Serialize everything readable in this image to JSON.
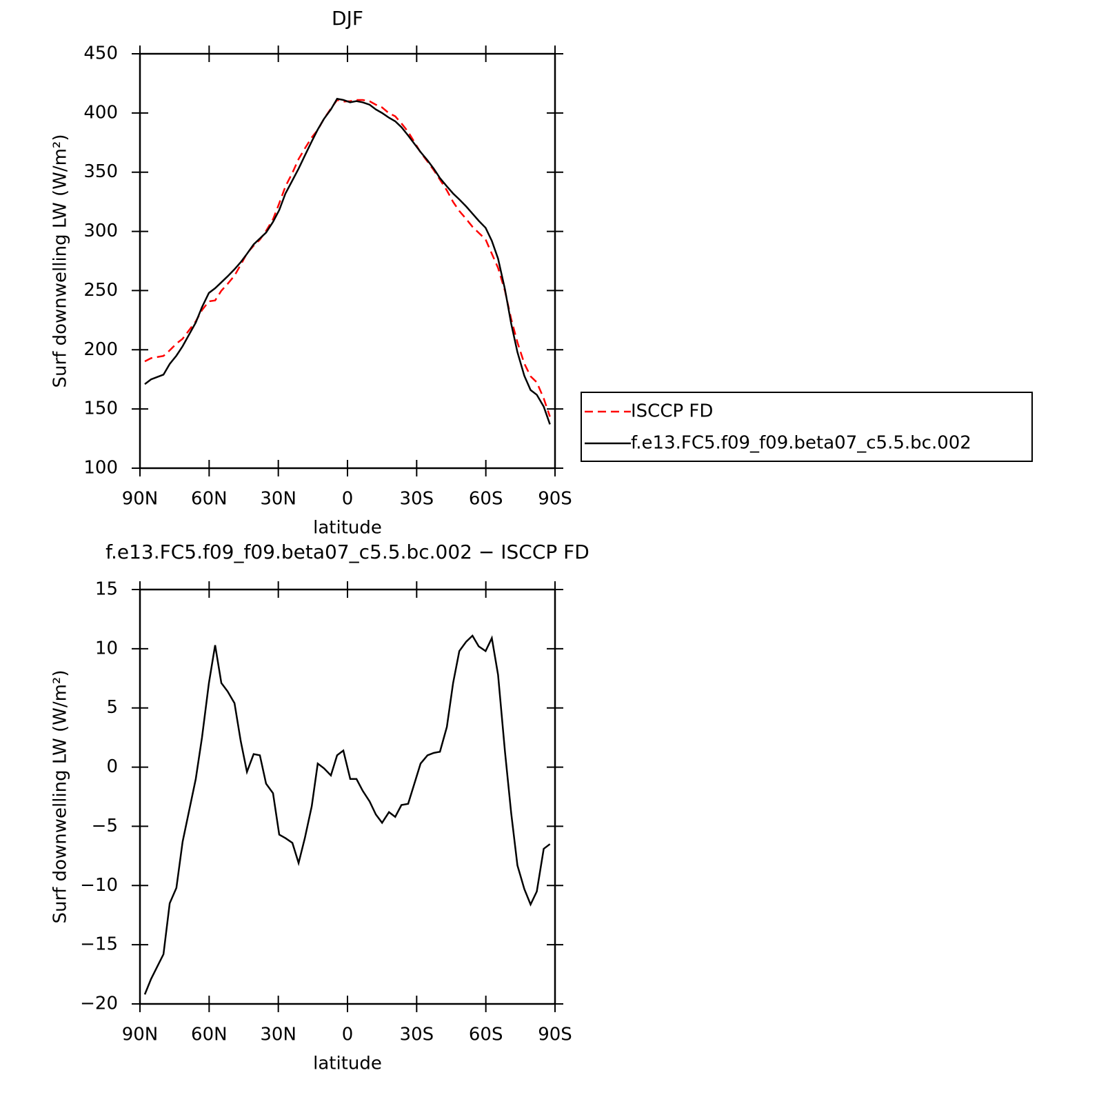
{
  "chart_data": [
    {
      "type": "line",
      "title": "DJF",
      "xlabel": "latitude",
      "ylabel": "Surf downwelling LW (W/m²)",
      "x": [
        87.9,
        85.2,
        79.8,
        77.1,
        74.2,
        71.5,
        65.8,
        63.1,
        60.1,
        57.4,
        54.7,
        52.0,
        49.0,
        46.3,
        43.6,
        40.7,
        38.0,
        35.3,
        32.3,
        29.6,
        26.9,
        23.9,
        21.2,
        18.5,
        15.5,
        12.9,
        10.2,
        7.2,
        4.5,
        1.8,
        -1.2,
        -3.9,
        -6.6,
        -9.6,
        -12.3,
        -15.0,
        -18.0,
        -20.7,
        -23.4,
        -26.3,
        -29.0,
        -31.7,
        -34.7,
        -37.4,
        -40.1,
        -43.1,
        -45.8,
        -48.5,
        -51.5,
        -54.2,
        -56.9,
        -59.9,
        -62.6,
        -65.3,
        -68.3,
        -71.0,
        -73.7,
        -76.7,
        -79.4,
        -82.1,
        -85.1,
        -87.8
      ],
      "series": [
        {
          "name": "ISCCP FD",
          "color": "#ff0000",
          "dash": true,
          "values": [
            190.2,
            192.9,
            194.8,
            199.5,
            205.2,
            209.3,
            224,
            233.5,
            240.9,
            241.7,
            249.9,
            255.6,
            262.6,
            271.8,
            281.4,
            287.9,
            293,
            300.4,
            310.2,
            323.7,
            338,
            349.4,
            361.1,
            370,
            379.3,
            385.7,
            395.1,
            403.7,
            411,
            409.6,
            410,
            411,
            411,
            409.9,
            407,
            404.7,
            399.8,
            397.2,
            391.2,
            384.1,
            375.4,
            366.7,
            359,
            351.8,
            343.7,
            334.6,
            324.9,
            317.2,
            310.4,
            303.9,
            298.8,
            293.2,
            281.1,
            269.2,
            249.7,
            225.9,
            206.3,
            188.3,
            177.6,
            172.5,
            158.9,
            143.5
          ]
        },
        {
          "name": "f.e13.FC5.f09_f09.beta07_c5.5.bc.002",
          "color": "#000000",
          "dash": false,
          "values": [
            171,
            175,
            179,
            188,
            195,
            203,
            223,
            236,
            248,
            252,
            257,
            262,
            268,
            274,
            281,
            289,
            294,
            299,
            308,
            318,
            332,
            343,
            353,
            364,
            376,
            386,
            395,
            403,
            412,
            411,
            409,
            410,
            409,
            407,
            403,
            400,
            396,
            393,
            388,
            381,
            374,
            367,
            360,
            353,
            345,
            338,
            332,
            327,
            321,
            315,
            309,
            303,
            292,
            277,
            251,
            222,
            198,
            178,
            166,
            162,
            152,
            137
          ]
        }
      ],
      "xlim": [
        90,
        -90
      ],
      "xticks": [
        {
          "value": 90,
          "label": "90N"
        },
        {
          "value": 60,
          "label": "60N"
        },
        {
          "value": 30,
          "label": "30N"
        },
        0,
        {
          "value": -30,
          "label": "30S"
        },
        {
          "value": -60,
          "label": "60S"
        },
        {
          "value": -90,
          "label": "90S"
        }
      ],
      "ylim": [
        100,
        450
      ],
      "yticks": [
        100,
        150,
        200,
        250,
        300,
        350,
        400,
        450
      ],
      "legend": "right"
    },
    {
      "type": "line",
      "title": "f.e13.FC5.f09_f09.beta07_c5.5.bc.002 − ISCCP FD",
      "xlabel": "latitude",
      "ylabel": "Surf downwelling LW (W/m²)",
      "x": [
        87.9,
        85.2,
        79.8,
        77.1,
        74.2,
        71.5,
        65.8,
        63.1,
        60.1,
        57.4,
        54.7,
        52.0,
        49.0,
        46.3,
        43.6,
        40.7,
        38.0,
        35.3,
        32.3,
        29.6,
        26.9,
        23.9,
        21.2,
        18.5,
        15.5,
        12.9,
        10.2,
        7.2,
        4.5,
        1.8,
        -1.2,
        -3.9,
        -6.6,
        -9.6,
        -12.3,
        -15.0,
        -18.0,
        -20.7,
        -23.4,
        -26.3,
        -29.0,
        -31.7,
        -34.7,
        -37.4,
        -40.1,
        -43.1,
        -45.8,
        -48.5,
        -51.5,
        -54.2,
        -56.9,
        -59.9,
        -62.6,
        -65.3,
        -68.3,
        -71.0,
        -73.7,
        -76.7,
        -79.4,
        -82.1,
        -85.1,
        -87.8
      ],
      "series": [
        {
          "color": "#000000",
          "dash": false,
          "values": [
            -19.2,
            -17.9,
            -15.8,
            -11.5,
            -10.2,
            -6.3,
            -1.0,
            2.5,
            7.1,
            10.3,
            7.1,
            6.4,
            5.4,
            2.2,
            -0.4,
            1.1,
            1.0,
            -1.4,
            -2.2,
            -5.7,
            -6.0,
            -6.4,
            -8.1,
            -6.0,
            -3.3,
            0.3,
            -0.1,
            -0.7,
            1.0,
            1.4,
            -1.0,
            -1.0,
            -2.0,
            -2.9,
            -4.0,
            -4.7,
            -3.8,
            -4.2,
            -3.2,
            -3.1,
            -1.4,
            0.3,
            1.0,
            1.2,
            1.3,
            3.4,
            7.1,
            9.8,
            10.6,
            11.1,
            10.2,
            9.8,
            10.9,
            7.8,
            1.3,
            -3.9,
            -8.3,
            -10.3,
            -11.6,
            -10.5,
            -6.9,
            -6.5
          ]
        }
      ],
      "xlim": [
        90,
        -90
      ],
      "xticks": [
        {
          "value": 90,
          "label": "90N"
        },
        {
          "value": 60,
          "label": "60N"
        },
        {
          "value": 30,
          "label": "30N"
        },
        0,
        {
          "value": -30,
          "label": "30S"
        },
        {
          "value": -60,
          "label": "60S"
        },
        {
          "value": -90,
          "label": "90S"
        }
      ],
      "ylim": [
        -20,
        15
      ],
      "yticks": [
        {
          "value": -20,
          "label": "−20"
        },
        {
          "value": -15,
          "label": "−15"
        },
        {
          "value": -10,
          "label": "−10"
        },
        {
          "value": -5,
          "label": "−5"
        },
        0,
        5,
        10,
        15
      ]
    }
  ]
}
